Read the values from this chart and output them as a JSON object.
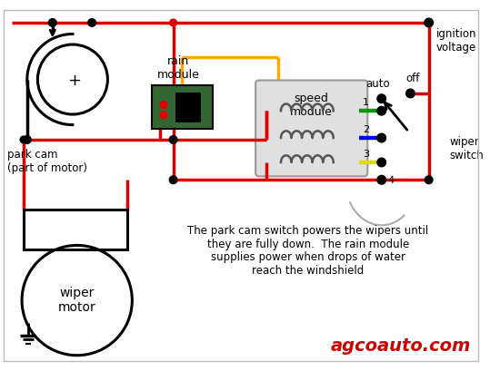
{
  "bg": "#ffffff",
  "red": "#dd0000",
  "black": "#000000",
  "green": "#009900",
  "blue": "#0000ee",
  "yellow": "#dddd00",
  "orange": "#ffaa00",
  "gray": "#aaaaaa",
  "pcb_green": "#336633",
  "pcb_dark": "#1a441a",
  "watermark": "agcoauto.com",
  "watermark_color": "#cc0000",
  "desc1": "The park cam switch powers the wipers until",
  "desc2": "they are fully down.  The rain module",
  "desc3": "supplies power when drops of water",
  "desc4": "reach the windshield",
  "lbl_rain": "rain\nmodule",
  "lbl_speed": "speed\nmodule",
  "lbl_auto": "auto",
  "lbl_off": "off",
  "lbl_ignition": "ignition\nvoltage",
  "lbl_wiper_sw": "wiper\nswitch",
  "lbl_park_cam": "park cam\n(part of motor)",
  "lbl_motor": "wiper\nmotor",
  "lbl_plus": "+"
}
